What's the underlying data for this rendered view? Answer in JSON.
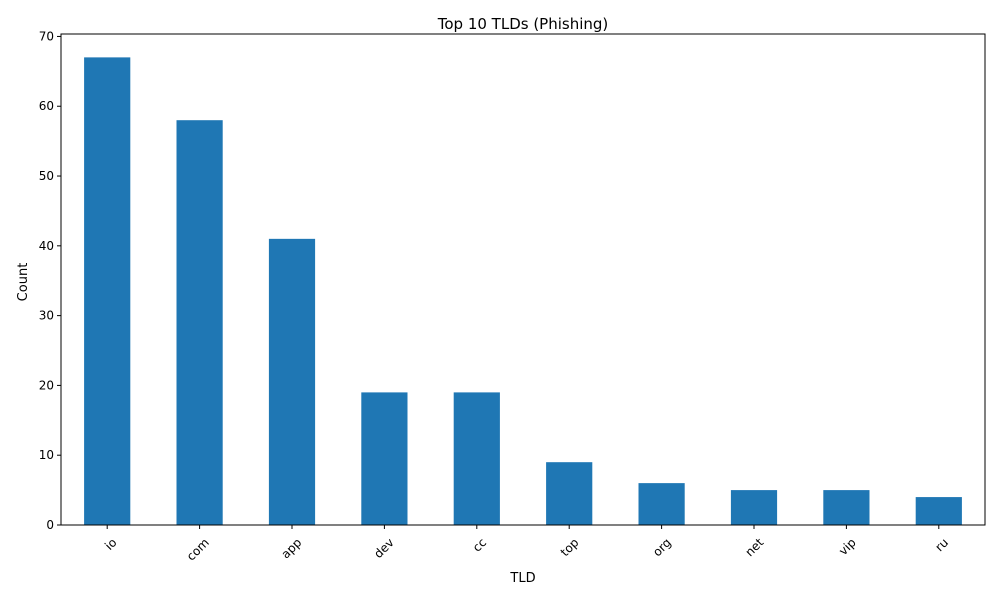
{
  "chart_data": {
    "type": "bar",
    "title": "Top 10 TLDs (Phishing)",
    "xlabel": "TLD",
    "ylabel": "Count",
    "categories": [
      "io",
      "com",
      "app",
      "dev",
      "cc",
      "top",
      "org",
      "net",
      "vip",
      "ru"
    ],
    "values": [
      67,
      58,
      41,
      19,
      19,
      9,
      6,
      5,
      5,
      4
    ],
    "ylim": [
      0,
      70.35
    ],
    "yticks": [
      0,
      10,
      20,
      30,
      40,
      50,
      60,
      70
    ],
    "grid": false,
    "legend": "none",
    "bar_color": "#1f77b4"
  }
}
